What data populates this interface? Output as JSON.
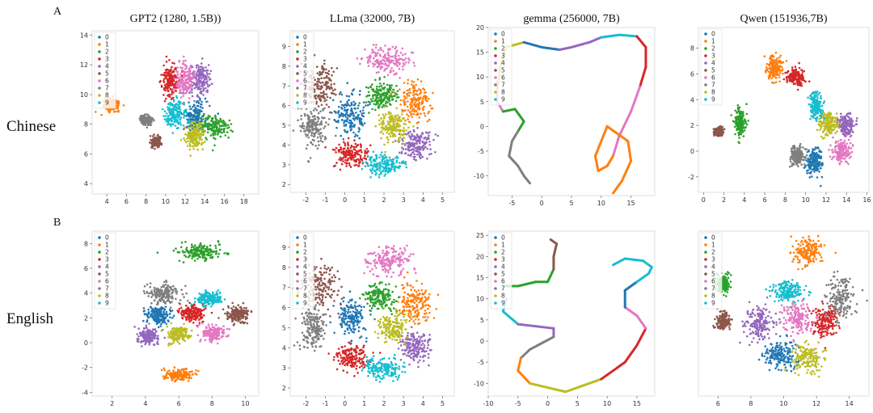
{
  "figure": {
    "panel_letters": [
      "A",
      "B"
    ],
    "row_labels": [
      "Chinese",
      "English"
    ]
  },
  "colors": [
    "#1f77b4",
    "#ff7f0e",
    "#2ca02c",
    "#d62728",
    "#9467bd",
    "#8c564b",
    "#e377c2",
    "#7f7f7f",
    "#bcbd22",
    "#17becf"
  ],
  "legend_labels": [
    "0",
    "1",
    "2",
    "3",
    "4",
    "5",
    "6",
    "7",
    "8",
    "9"
  ],
  "chart_data": [
    {
      "type": "scatter",
      "title": "GPT2 (1280, 1.5B))",
      "xlim": [
        2.5,
        19.5
      ],
      "ylim": [
        3.3,
        14.3
      ],
      "xticks": [
        4,
        6,
        8,
        10,
        12,
        14,
        16,
        18
      ],
      "yticks": [
        4,
        6,
        8,
        10,
        12,
        14
      ],
      "clusters": [
        [
          13.0,
          8.5,
          1.1,
          1.0
        ],
        [
          4.5,
          9.3,
          0.7,
          0.35
        ],
        [
          15.0,
          7.8,
          1.5,
          0.7
        ],
        [
          10.5,
          11.0,
          0.8,
          1.0
        ],
        [
          13.5,
          11.0,
          0.9,
          1.0
        ],
        [
          9.0,
          6.8,
          0.5,
          0.3
        ],
        [
          12.0,
          11.0,
          0.8,
          1.0
        ],
        [
          8.0,
          8.3,
          0.5,
          0.3
        ],
        [
          13.0,
          7.2,
          1.0,
          0.8
        ],
        [
          11.0,
          8.7,
          0.9,
          0.8
        ]
      ]
    },
    {
      "type": "scatter",
      "title": "LLma (32000, 7B)",
      "xlim": [
        -2.8,
        5.6
      ],
      "ylim": [
        1.6,
        9.8
      ],
      "xticks": [
        -2,
        -1,
        0,
        1,
        2,
        3,
        4,
        5
      ],
      "yticks": [
        2,
        3,
        4,
        5,
        6,
        7,
        8,
        9
      ],
      "clusters": [
        [
          0.3,
          5.5,
          0.7,
          0.9
        ],
        [
          3.6,
          6.2,
          0.7,
          0.9
        ],
        [
          1.8,
          6.5,
          0.7,
          0.6
        ],
        [
          0.3,
          3.5,
          0.8,
          0.6
        ],
        [
          3.6,
          4.0,
          0.7,
          0.7
        ],
        [
          -1.3,
          7.0,
          0.8,
          1.0
        ],
        [
          2.2,
          8.3,
          1.0,
          0.6
        ],
        [
          -1.6,
          5.0,
          0.6,
          1.0
        ],
        [
          2.4,
          5.0,
          0.7,
          0.7
        ],
        [
          2.0,
          3.0,
          0.9,
          0.5
        ]
      ]
    },
    {
      "type": "line",
      "title": "gemma (256000, 7B)",
      "xlim": [
        -9,
        19
      ],
      "ylim": [
        -14,
        20
      ],
      "xticks": [
        -5,
        0,
        5,
        10,
        15
      ],
      "yticks": [
        -10,
        -5,
        0,
        5,
        10,
        15,
        20
      ],
      "path": [
        [
          -7.5,
          7
        ],
        [
          -7,
          12
        ],
        [
          -6,
          16
        ],
        [
          -3,
          17
        ],
        [
          0,
          16
        ],
        [
          3,
          15.5
        ],
        [
          5,
          16
        ],
        [
          8,
          17
        ],
        [
          10,
          18
        ],
        [
          13,
          18.5
        ],
        [
          16,
          18.2
        ],
        [
          17.5,
          16
        ],
        [
          17.5,
          12
        ],
        [
          16.5,
          8
        ],
        [
          15,
          3
        ],
        [
          13,
          -2
        ],
        [
          12,
          -6
        ],
        [
          11,
          -8
        ],
        [
          9.5,
          -9
        ],
        [
          9,
          -6
        ],
        [
          10,
          -3
        ],
        [
          11,
          0
        ],
        [
          14.5,
          -3
        ],
        [
          15,
          -7
        ],
        [
          13.5,
          -11
        ],
        [
          12,
          -13.5
        ]
      ],
      "path2": [
        [
          -7.5,
          9
        ],
        [
          -7.5,
          5
        ],
        [
          -6.5,
          3
        ],
        [
          -4.5,
          3.5
        ],
        [
          -3,
          1
        ],
        [
          -4,
          -1
        ],
        [
          -5,
          -3
        ],
        [
          -5.5,
          -6
        ],
        [
          -4,
          -8
        ],
        [
          -3,
          -10
        ],
        [
          -2,
          -11.5
        ]
      ],
      "seg_colors": [
        8,
        8,
        8,
        0,
        0,
        4,
        4,
        4,
        9,
        9,
        3,
        3,
        3,
        6,
        6,
        6,
        1,
        1,
        1,
        1,
        1,
        1,
        1,
        1,
        1
      ],
      "seg2_colors": [
        6,
        6,
        2,
        2,
        2,
        7,
        7,
        7,
        7,
        7
      ]
    },
    {
      "type": "scatter",
      "title": "Qwen (151936,7B)",
      "xlim": [
        -0.5,
        16.2
      ],
      "ylim": [
        -3.2,
        9.6
      ],
      "xticks": [
        0,
        2,
        4,
        6,
        8,
        10,
        12,
        14,
        16
      ],
      "yticks": [
        -2,
        0,
        2,
        4,
        6,
        8
      ],
      "clusters": [
        [
          10.8,
          -0.8,
          0.7,
          0.9
        ],
        [
          7.0,
          6.5,
          0.7,
          0.8
        ],
        [
          3.6,
          2.2,
          0.5,
          0.9
        ],
        [
          9.0,
          5.8,
          0.8,
          0.6
        ],
        [
          14.0,
          2.0,
          0.7,
          0.8
        ],
        [
          1.5,
          1.5,
          0.4,
          0.3
        ],
        [
          13.5,
          0.0,
          0.8,
          0.7
        ],
        [
          9.2,
          -0.3,
          0.6,
          0.7
        ],
        [
          12.2,
          2.1,
          0.8,
          0.8
        ],
        [
          11.0,
          3.5,
          0.5,
          0.9
        ]
      ]
    },
    {
      "type": "scatter",
      "title": "",
      "xlim": [
        0.8,
        10.8
      ],
      "ylim": [
        -4.3,
        9.0
      ],
      "xticks": [
        2,
        4,
        6,
        8,
        10
      ],
      "yticks": [
        -4,
        -2,
        0,
        2,
        4,
        6,
        8
      ],
      "clusters": [
        [
          4.8,
          2.2,
          0.7,
          0.6
        ],
        [
          6.0,
          -2.6,
          0.8,
          0.4
        ],
        [
          7.3,
          7.4,
          1.1,
          0.6
        ],
        [
          6.8,
          2.4,
          0.7,
          0.6
        ],
        [
          4.2,
          0.5,
          0.6,
          0.6
        ],
        [
          9.5,
          2.3,
          0.6,
          0.6
        ],
        [
          8.0,
          0.8,
          0.7,
          0.6
        ],
        [
          5.0,
          4.0,
          0.8,
          0.7
        ],
        [
          6.0,
          0.7,
          0.6,
          0.6
        ],
        [
          7.8,
          3.5,
          0.7,
          0.5
        ]
      ]
    },
    {
      "type": "scatter",
      "title": "",
      "xlim": [
        -2.8,
        5.6
      ],
      "ylim": [
        1.6,
        9.8
      ],
      "xticks": [
        -2,
        -1,
        0,
        1,
        2,
        3,
        4,
        5
      ],
      "yticks": [
        2,
        3,
        4,
        5,
        6,
        7,
        8,
        9
      ],
      "clusters": [
        [
          0.3,
          5.5,
          0.7,
          0.9
        ],
        [
          3.6,
          6.2,
          0.7,
          0.9
        ],
        [
          1.8,
          6.5,
          0.7,
          0.6
        ],
        [
          0.3,
          3.5,
          0.8,
          0.6
        ],
        [
          3.6,
          4.0,
          0.7,
          0.7
        ],
        [
          -1.3,
          7.0,
          0.8,
          1.0
        ],
        [
          2.2,
          8.3,
          1.0,
          0.6
        ],
        [
          -1.6,
          5.0,
          0.6,
          1.0
        ],
        [
          2.4,
          5.0,
          0.7,
          0.7
        ],
        [
          2.0,
          3.0,
          0.9,
          0.5
        ]
      ]
    },
    {
      "type": "line",
      "title": "",
      "xlim": [
        -10,
        18
      ],
      "ylim": [
        -13,
        26
      ],
      "xticks": [
        -10,
        -5,
        0,
        5,
        10,
        15
      ],
      "yticks": [
        -10,
        -5,
        0,
        5,
        10,
        15,
        20,
        25
      ],
      "path": [
        [
          -7,
          10
        ],
        [
          -7.5,
          7
        ],
        [
          -5,
          4
        ],
        [
          -2,
          3.5
        ],
        [
          1,
          3
        ],
        [
          1,
          1
        ],
        [
          -1,
          -0.5
        ],
        [
          -3,
          -2
        ],
        [
          -4.5,
          -4
        ],
        [
          -5,
          -7
        ],
        [
          -3,
          -10
        ],
        [
          0,
          -11
        ],
        [
          3,
          -12
        ],
        [
          5,
          -11
        ],
        [
          9,
          -9
        ],
        [
          13,
          -5
        ],
        [
          15,
          -1
        ],
        [
          16.5,
          3
        ],
        [
          15,
          6
        ],
        [
          13,
          8
        ],
        [
          13,
          12
        ],
        [
          15,
          14
        ],
        [
          17,
          16
        ],
        [
          17.5,
          17.5
        ],
        [
          16,
          19
        ],
        [
          13,
          19.5
        ],
        [
          11,
          18
        ]
      ],
      "path2": [
        [
          -7,
          13
        ],
        [
          -5,
          13
        ],
        [
          -2,
          14
        ],
        [
          0,
          14
        ],
        [
          1,
          17
        ],
        [
          1,
          20
        ],
        [
          1.5,
          23
        ],
        [
          0.5,
          24
        ]
      ],
      "seg_colors": [
        9,
        9,
        4,
        4,
        4,
        7,
        7,
        7,
        1,
        1,
        8,
        8,
        8,
        8,
        3,
        3,
        3,
        6,
        6,
        0,
        0,
        9,
        9,
        9,
        9,
        9
      ],
      "seg2_colors": [
        2,
        2,
        2,
        2,
        5,
        5,
        5
      ]
    },
    {
      "type": "scatter",
      "title": "",
      "xlim": [
        4.8,
        15.2
      ],
      "ylim": [
        -5.5,
        5.5
      ],
      "xticks": [
        6,
        8,
        10,
        12,
        14
      ],
      "yticks": [],
      "clusters": [
        [
          9.8,
          -2.8,
          0.9,
          0.9
        ],
        [
          11.5,
          4.2,
          0.8,
          0.9
        ],
        [
          6.3,
          2.0,
          0.4,
          0.6
        ],
        [
          12.5,
          -0.5,
          0.7,
          1.0
        ],
        [
          8.5,
          -0.7,
          0.8,
          1.0
        ],
        [
          6.3,
          -0.5,
          0.4,
          0.6
        ],
        [
          10.8,
          -0.3,
          0.8,
          0.9
        ],
        [
          13.5,
          1.0,
          0.8,
          1.2
        ],
        [
          11.5,
          -3.0,
          0.8,
          0.8
        ],
        [
          10.2,
          1.5,
          0.9,
          0.6
        ]
      ]
    }
  ]
}
